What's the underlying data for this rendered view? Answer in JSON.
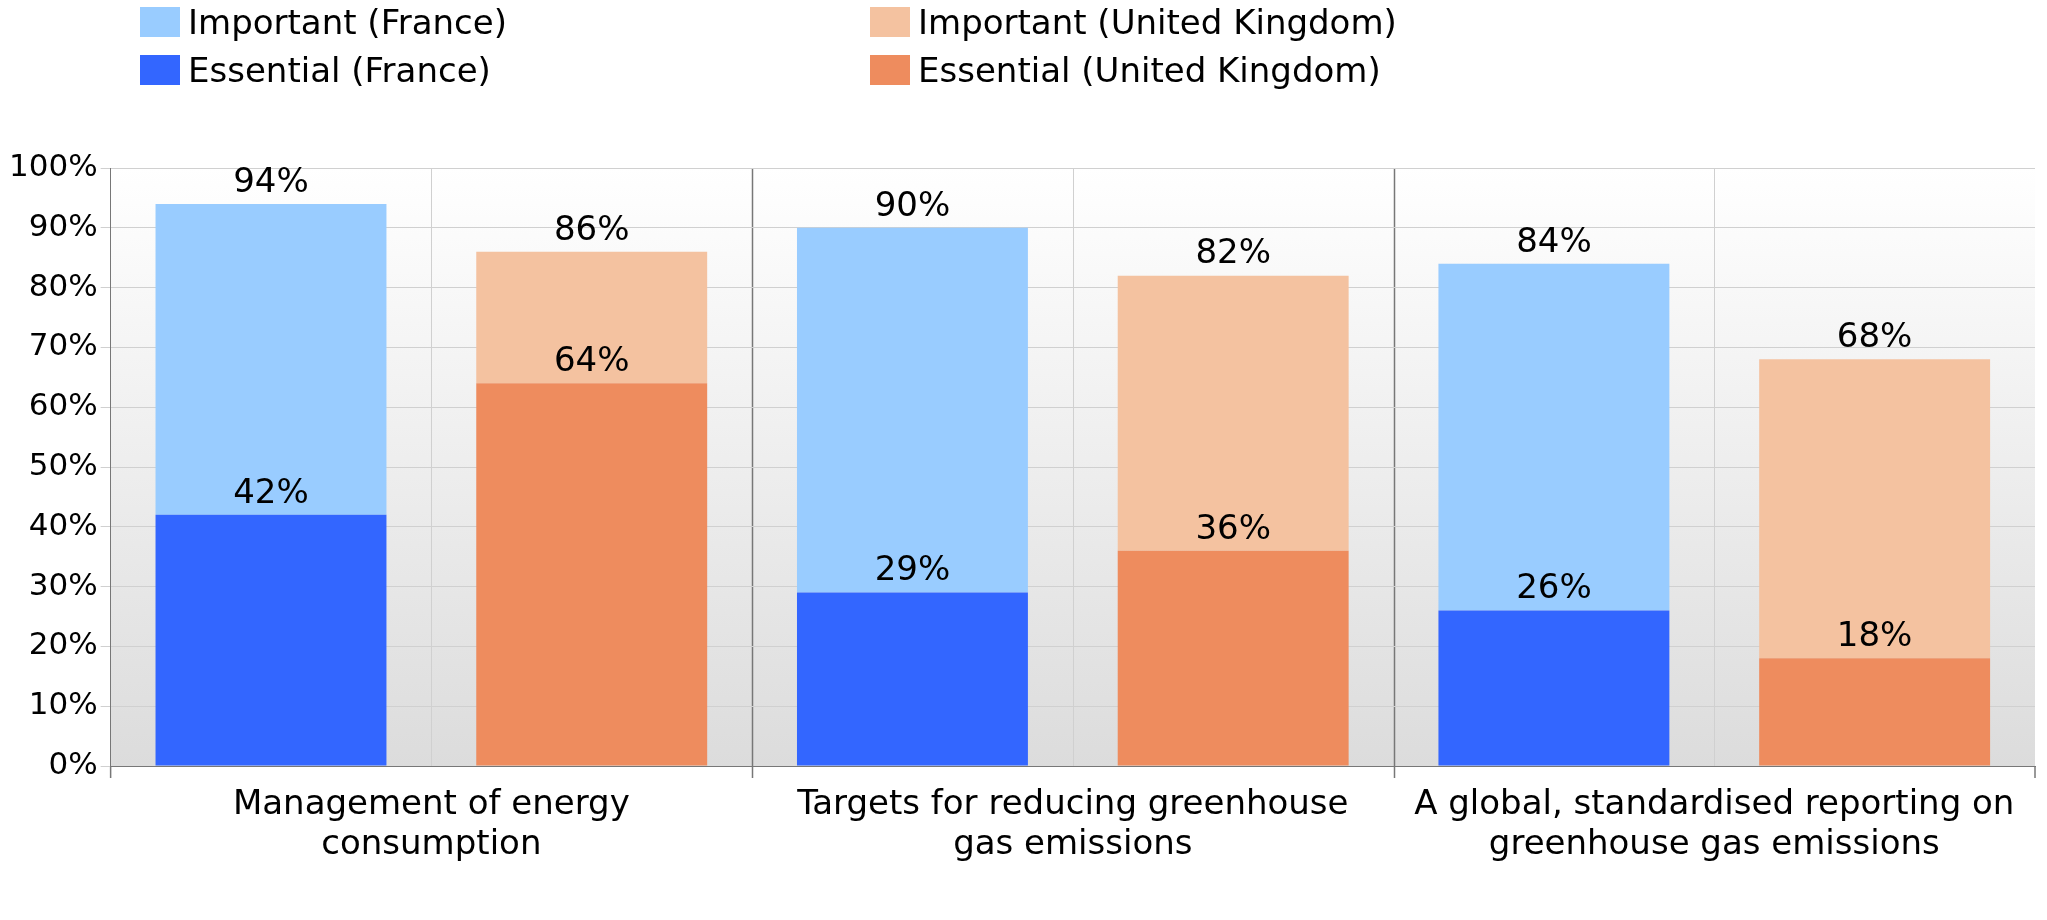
{
  "chart_data": {
    "type": "bar",
    "categories": [
      "Management of energy consumption",
      null,
      "Targets for reducing greenhouse gas emissions",
      null,
      "A global, standardised reporting on greenhouse gas emissions",
      null
    ],
    "stacked": true,
    "series": [
      {
        "name": "Essential (France)",
        "color": "#3366ff",
        "values": [
          42,
          null,
          29,
          null,
          26,
          null
        ],
        "value_labels": [
          "42%",
          null,
          "29%",
          null,
          "26%",
          null
        ]
      },
      {
        "name": "Essential (United Kingdom)",
        "color": "#ee8c5e",
        "values": [
          null,
          64,
          null,
          36,
          null,
          18
        ],
        "value_labels": [
          null,
          "64%",
          null,
          "36%",
          null,
          "18%"
        ]
      },
      {
        "name": "Important (France)",
        "color": "#99ccff",
        "values": [
          52,
          null,
          61,
          null,
          58,
          null
        ]
      },
      {
        "name": "Important (United Kingdom)",
        "color": "#f4c2a0",
        "values": [
          null,
          22,
          null,
          46,
          null,
          50
        ]
      }
    ],
    "totals": [
      "94%",
      "86%",
      "90%",
      "82%",
      "84%",
      "68%"
    ],
    "ylim": [
      0,
      100
    ],
    "yticks": [
      {
        "value": 0,
        "label": "0%"
      },
      {
        "value": 10,
        "label": "10%"
      },
      {
        "value": 20,
        "label": "20%"
      },
      {
        "value": 30,
        "label": "30%"
      },
      {
        "value": 40,
        "label": "40%"
      },
      {
        "value": 50,
        "label": "50%"
      },
      {
        "value": 60,
        "label": "60%"
      },
      {
        "value": 70,
        "label": "70%"
      },
      {
        "value": 80,
        "label": "80%"
      },
      {
        "value": 90,
        "label": "90%"
      },
      {
        "value": 100,
        "label": "100%"
      }
    ],
    "grid": true,
    "legend": "top left"
  }
}
